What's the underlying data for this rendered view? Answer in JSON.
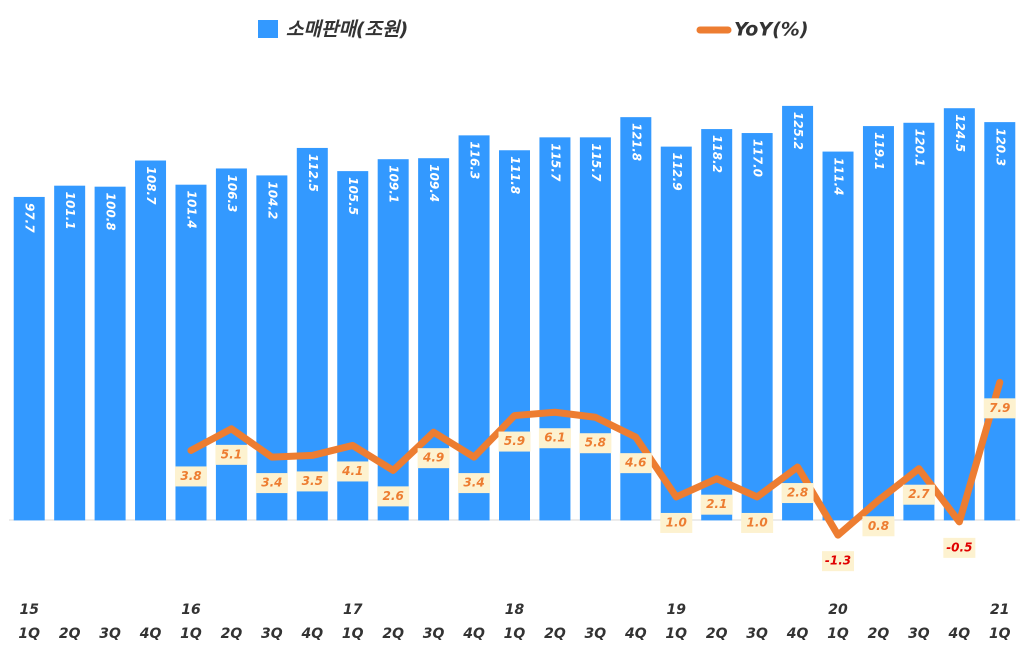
{
  "chart_data": {
    "type": "bar_line",
    "categories": [
      "1Q",
      "2Q",
      "3Q",
      "4Q",
      "1Q",
      "2Q",
      "3Q",
      "4Q",
      "1Q",
      "2Q",
      "3Q",
      "4Q",
      "1Q",
      "2Q",
      "3Q",
      "4Q",
      "1Q",
      "2Q",
      "3Q",
      "4Q",
      "1Q",
      "2Q",
      "3Q",
      "4Q",
      "1Q"
    ],
    "year_labels": [
      "15",
      null,
      null,
      null,
      "16",
      null,
      null,
      null,
      "17",
      null,
      null,
      null,
      "18",
      null,
      null,
      null,
      "19",
      null,
      null,
      null,
      "20",
      null,
      null,
      null,
      "21"
    ],
    "ylim": [
      -18,
      130
    ],
    "y2lim": [
      -4,
      25.5
    ],
    "series": [
      {
        "name": "소매판매(조원)",
        "type": "bar",
        "color": "#3399ff",
        "values": [
          97.7,
          101.1,
          100.8,
          108.7,
          101.4,
          106.3,
          104.2,
          112.5,
          105.5,
          109.1,
          109.4,
          116.3,
          111.8,
          115.7,
          115.7,
          121.8,
          112.9,
          118.2,
          117.0,
          125.2,
          111.4,
          119.1,
          120.1,
          124.5,
          120.3
        ],
        "value_labels": [
          "97.7",
          "101.1",
          "100.8",
          "108.7",
          "101.4",
          "106.3",
          "104.2",
          "112.5",
          "105.5",
          "109.1",
          "109.4",
          "116.3",
          "111.8",
          "115.7",
          "115.7",
          "121.8",
          "112.9",
          "118.2",
          "117.0",
          "125.2",
          "111.4",
          "119.1",
          "120.1",
          "124.5",
          "120.3"
        ]
      },
      {
        "name": "YoY(%)",
        "type": "line",
        "axis": "y2",
        "color": "#ed7d31",
        "values": [
          null,
          null,
          null,
          null,
          3.8,
          5.1,
          3.4,
          3.5,
          4.1,
          2.6,
          4.9,
          3.4,
          5.9,
          6.1,
          5.8,
          4.6,
          1.0,
          2.1,
          1.0,
          2.8,
          -1.3,
          0.8,
          2.7,
          -0.5,
          7.9
        ],
        "value_labels": [
          null,
          null,
          null,
          null,
          "3.8",
          "5.1",
          "3.4",
          "3.5",
          "4.1",
          "2.6",
          "4.9",
          "3.4",
          "5.9",
          "6.1",
          "5.8",
          "4.6",
          "1.0",
          "2.1",
          "1.0",
          "2.8",
          "-1.3",
          "0.8",
          "2.7",
          "-0.5",
          "7.9"
        ]
      }
    ]
  }
}
